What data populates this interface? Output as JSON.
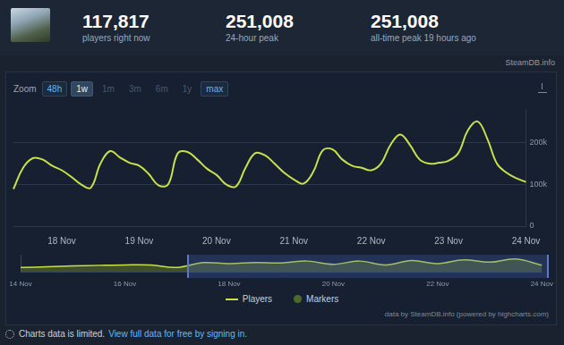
{
  "header": {
    "stats": [
      {
        "value": "117,817",
        "label": "players right now"
      },
      {
        "value": "251,008",
        "label": "24-hour peak"
      },
      {
        "value": "251,008",
        "label": "all-time peak 19 hours ago"
      }
    ],
    "source": "SteamDB.info"
  },
  "zoom": {
    "label": "Zoom",
    "buttons": [
      "48h",
      "1w",
      "1m",
      "3m",
      "6m",
      "1y",
      "max"
    ],
    "enabled": [
      "48h",
      "1w",
      "max"
    ],
    "selected": "1w"
  },
  "chart_data": [
    {
      "type": "line",
      "categories": [
        null,
        null,
        null,
        null,
        null,
        "18 Nov",
        null,
        null,
        null,
        null,
        null,
        null,
        null,
        "19 Nov",
        null,
        null,
        null,
        null,
        null,
        null,
        null,
        "20 Nov",
        null,
        null,
        null,
        null,
        null,
        null,
        null,
        "21 Nov",
        null,
        null,
        null,
        null,
        null,
        null,
        null,
        "22 Nov",
        null,
        null,
        null,
        null,
        null,
        null,
        null,
        "23 Nov",
        null,
        null,
        null,
        null,
        null,
        null,
        null,
        "24 Nov"
      ],
      "series": [
        {
          "name": "Players",
          "color": "#c9e04a",
          "values": [
            89000,
            140000,
            163000,
            160000,
            145000,
            134000,
            118000,
            100000,
            92000,
            150000,
            180000,
            165000,
            152000,
            145000,
            125000,
            98000,
            100000,
            175000,
            178000,
            160000,
            138000,
            123000,
            100000,
            95000,
            140000,
            175000,
            170000,
            150000,
            128000,
            112000,
            102000,
            130000,
            182000,
            184000,
            160000,
            145000,
            140000,
            134000,
            150000,
            195000,
            220000,
            195000,
            160000,
            150000,
            152000,
            157000,
            175000,
            230000,
            251000,
            210000,
            150000,
            128000,
            115000,
            106000
          ]
        },
        {
          "name": "Markers",
          "color": "#4d6a2e",
          "marker": "circle",
          "values": [
            null,
            null,
            null,
            null,
            null,
            null,
            null,
            null,
            null,
            null,
            null,
            null,
            null,
            null,
            null,
            null,
            null,
            null,
            null,
            null,
            null,
            null,
            null,
            null,
            null,
            null,
            null,
            null,
            null,
            null,
            null,
            null,
            null,
            null,
            null,
            null,
            null,
            null,
            null,
            null,
            null,
            null,
            null,
            null,
            null,
            null,
            null,
            null,
            null,
            null,
            null,
            null,
            null,
            null
          ]
        }
      ],
      "ylim": [
        0,
        280000
      ],
      "yticks": [
        0,
        {
          "value": 100000,
          "label": "100k"
        },
        {
          "value": 200000,
          "label": "200k"
        }
      ],
      "grid": true,
      "legend": "bottom"
    },
    {
      "type": "area",
      "categories": [
        "14 Nov",
        null,
        null,
        null,
        "16 Nov",
        null,
        null,
        null,
        "18 Nov",
        null,
        null,
        null,
        "20 Nov",
        null,
        null,
        null,
        "22 Nov",
        null,
        null,
        null,
        "24 Nov"
      ],
      "values": [
        70000,
        80000,
        95000,
        105000,
        112000,
        110000,
        70000,
        150000,
        134000,
        150000,
        145000,
        175000,
        123000,
        175000,
        112000,
        184000,
        134000,
        195000,
        157000,
        210000,
        106000
      ],
      "color": "#c9e04a",
      "ylim": [
        0,
        280000
      ],
      "tick_labels": "x"
    }
  ],
  "credits": "data by SteamDB.info (powered by highcharts.com)",
  "footer": {
    "text": "Charts data is limited.",
    "link": "View full data for free by signing in."
  }
}
